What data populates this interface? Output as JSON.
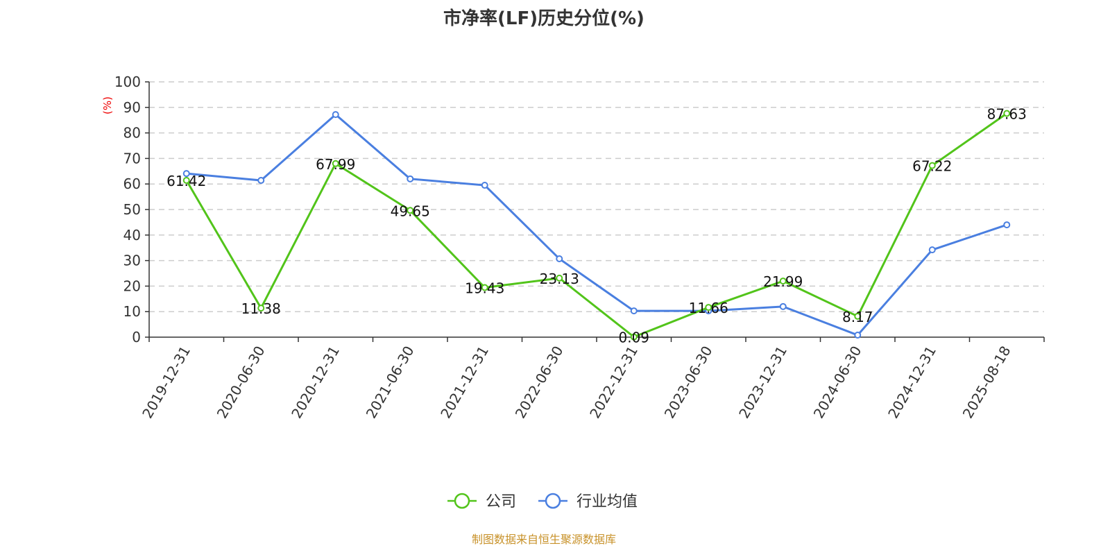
{
  "chart_data": {
    "type": "line",
    "title": "市净率(LF)历史分位(%)",
    "ylabel": "(%)",
    "ylim": [
      0,
      100
    ],
    "yticks": [
      0,
      10,
      20,
      30,
      40,
      50,
      60,
      70,
      80,
      90,
      100
    ],
    "grid": true,
    "legend_position": "bottom",
    "categories": [
      "2019-12-31",
      "2020-06-30",
      "2020-12-31",
      "2021-06-30",
      "2021-12-31",
      "2022-06-30",
      "2022-12-31",
      "2023-06-30",
      "2023-12-31",
      "2024-06-30",
      "2024-12-31",
      "2025-08-18"
    ],
    "series": [
      {
        "name": "公司",
        "color": "#52c41a",
        "labels": true,
        "values": [
          61.42,
          11.38,
          67.99,
          49.65,
          19.43,
          23.13,
          0.09,
          11.66,
          21.99,
          8.17,
          67.22,
          87.63
        ]
      },
      {
        "name": "行业均值",
        "color": "#4a7fe0",
        "labels": false,
        "values": [
          64.1,
          61.4,
          87.2,
          62.0,
          59.5,
          30.7,
          10.3,
          10.3,
          12.0,
          0.8,
          34.2,
          44.0
        ]
      }
    ]
  },
  "source": "制图数据来自恒生聚源数据库"
}
